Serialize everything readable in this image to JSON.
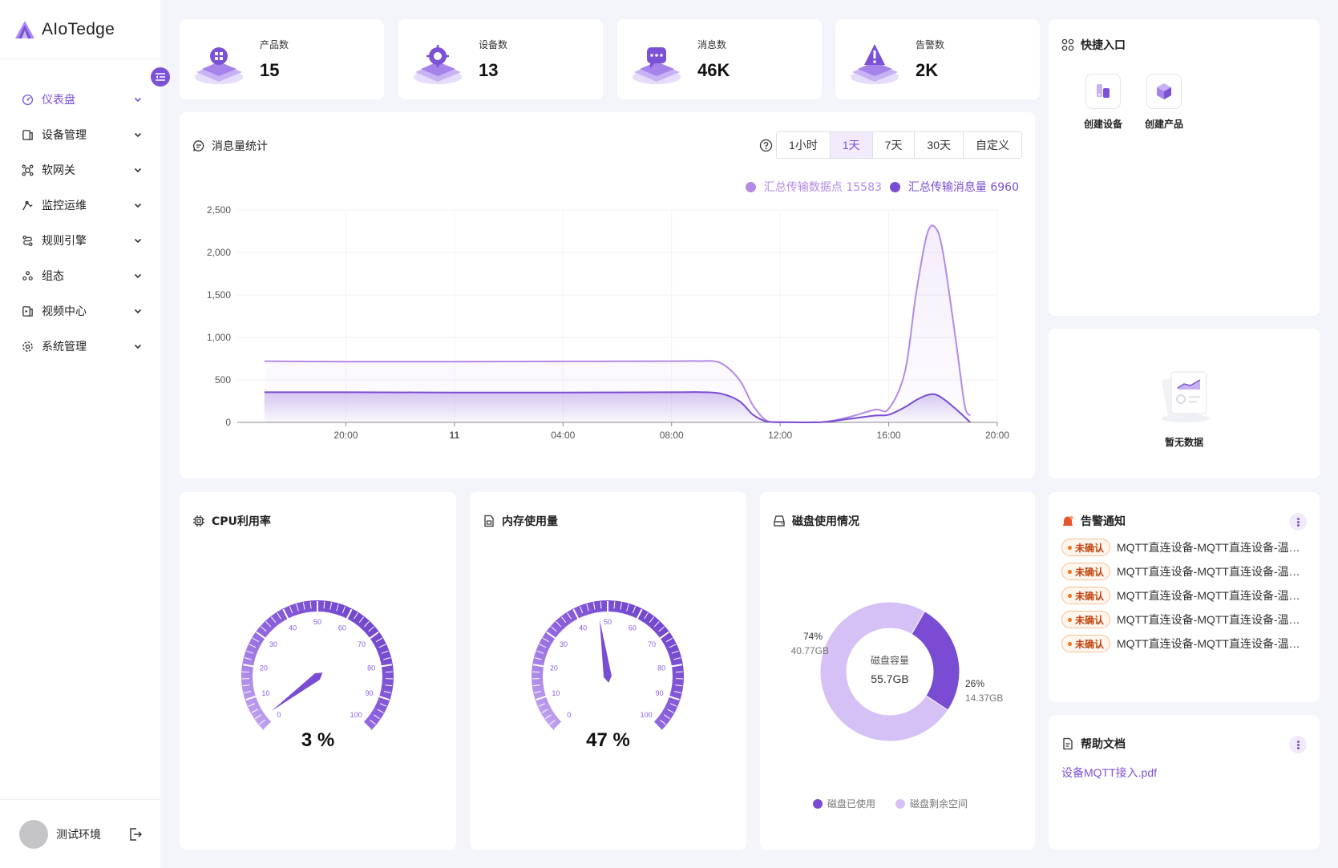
{
  "app": {
    "name": "AIoTedge"
  },
  "sidebar": {
    "items": [
      {
        "label": "仪表盘",
        "icon": "dashboard-icon",
        "active": true
      },
      {
        "label": "设备管理",
        "icon": "device-icon"
      },
      {
        "label": "软网关",
        "icon": "gateway-icon"
      },
      {
        "label": "监控运维",
        "icon": "monitor-icon"
      },
      {
        "label": "规则引擎",
        "icon": "rule-icon"
      },
      {
        "label": "组态",
        "icon": "config-icon"
      },
      {
        "label": "视频中心",
        "icon": "video-icon"
      },
      {
        "label": "系统管理",
        "icon": "settings-icon"
      }
    ],
    "user": "测试环境"
  },
  "stats": [
    {
      "label": "产品数",
      "value": "15",
      "icon": "product-icon"
    },
    {
      "label": "设备数",
      "value": "13",
      "icon": "device-chip-icon"
    },
    {
      "label": "消息数",
      "value": "46K",
      "icon": "message-icon"
    },
    {
      "label": "告警数",
      "value": "2K",
      "icon": "alert-icon"
    }
  ],
  "message_stats": {
    "title": "消息量统计",
    "tabs": [
      "1小时",
      "1天",
      "7天",
      "30天",
      "自定义"
    ],
    "active_tab": "1天",
    "legend": [
      "汇总传输数据点 15583",
      "汇总传输消息量 6960"
    ]
  },
  "chart_data": {
    "type": "area",
    "x_ticks": [
      "20:00",
      "11",
      "04:00",
      "08:00",
      "12:00",
      "16:00",
      "20:00"
    ],
    "y_ticks": [
      "2,500",
      "2,000",
      "1,500",
      "1,000",
      "500",
      "0"
    ],
    "ylim": [
      0,
      2500
    ],
    "xlim_hours": [
      16,
      44
    ],
    "series": [
      {
        "name": "汇总传输数据点 15583",
        "color": "#b48ae6",
        "points": [
          [
            17,
            720
          ],
          [
            20,
            715
          ],
          [
            24,
            715
          ],
          [
            28,
            718
          ],
          [
            32,
            720
          ],
          [
            33,
            722
          ],
          [
            33.8,
            700
          ],
          [
            34.5,
            500
          ],
          [
            35,
            200
          ],
          [
            35.5,
            20
          ],
          [
            36,
            2
          ],
          [
            37.5,
            2
          ],
          [
            38.5,
            60
          ],
          [
            39.5,
            150
          ],
          [
            40,
            160
          ],
          [
            40.6,
            600
          ],
          [
            41,
            1500
          ],
          [
            41.4,
            2200
          ],
          [
            41.7,
            2300
          ],
          [
            42,
            2000
          ],
          [
            42.5,
            900
          ],
          [
            42.8,
            200
          ],
          [
            43,
            80
          ]
        ]
      },
      {
        "name": "汇总传输消息量 6960",
        "color": "#7a4cd3",
        "points": [
          [
            17,
            355
          ],
          [
            20,
            355
          ],
          [
            24,
            352
          ],
          [
            28,
            352
          ],
          [
            32,
            355
          ],
          [
            33,
            356
          ],
          [
            33.8,
            340
          ],
          [
            34.5,
            250
          ],
          [
            35,
            90
          ],
          [
            35.5,
            10
          ],
          [
            36,
            2
          ],
          [
            37.5,
            2
          ],
          [
            38.5,
            40
          ],
          [
            39.5,
            80
          ],
          [
            40,
            90
          ],
          [
            40.6,
            180
          ],
          [
            41,
            260
          ],
          [
            41.4,
            320
          ],
          [
            41.7,
            330
          ],
          [
            42,
            280
          ],
          [
            42.5,
            150
          ],
          [
            43,
            2
          ]
        ]
      }
    ],
    "grid": true
  },
  "quick": {
    "title": "快捷入口",
    "items": [
      {
        "label": "创建设备",
        "icon": "create-device-icon"
      },
      {
        "label": "创建产品",
        "icon": "create-product-icon"
      }
    ]
  },
  "empty": {
    "text": "暂无数据"
  },
  "cpu": {
    "title": "CPU利用率",
    "value": 3,
    "value_text": "3 %"
  },
  "memory": {
    "title": "内存使用量",
    "value": 47,
    "value_text": "47 %"
  },
  "gauge_ticks": [
    "0",
    "10",
    "20",
    "30",
    "40",
    "50",
    "60",
    "70",
    "80",
    "90",
    "100"
  ],
  "disk": {
    "title": "磁盘使用情况",
    "center_label": "磁盘容量",
    "center_value": "55.7GB",
    "used_pct_text": "26%",
    "used_size": "14.37GB",
    "free_pct_text": "74%",
    "free_size": "40.77GB",
    "used_fraction": 0.26,
    "legend_used": "磁盘已使用",
    "legend_free": "磁盘剩余空间",
    "color_used": "#7a4cd3",
    "color_free": "#d5c1f5"
  },
  "alerts": {
    "title": "告警通知",
    "badge": "未确认",
    "items": [
      "MQTT直连设备-MQTT直连设备-温度过高",
      "MQTT直连设备-MQTT直连设备-温度过高",
      "MQTT直连设备-MQTT直连设备-温度过高",
      "MQTT直连设备-MQTT直连设备-温度过高",
      "MQTT直连设备-MQTT直连设备-温度过高"
    ]
  },
  "docs": {
    "title": "帮助文档",
    "link": "设备MQTT接入.pdf"
  },
  "colors": {
    "accent": "#7b52d6",
    "bg": "#f3f5fb"
  }
}
